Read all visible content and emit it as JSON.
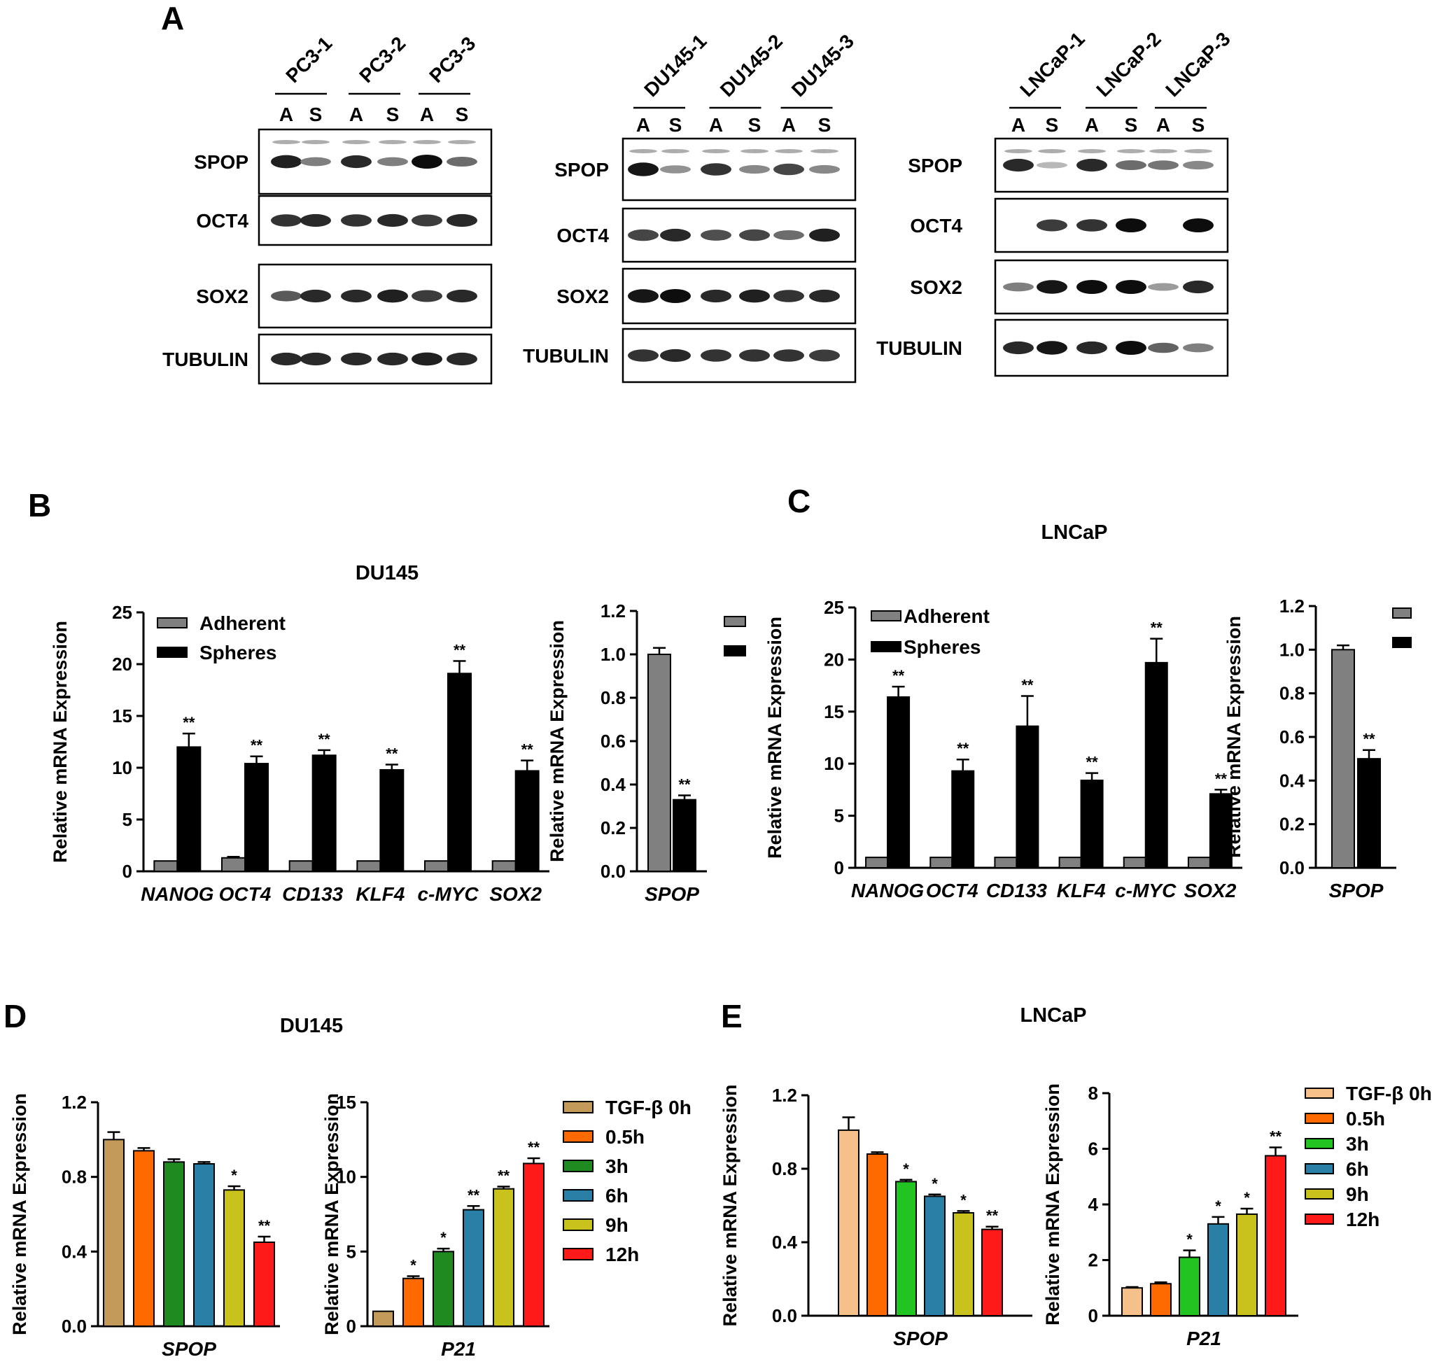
{
  "figure": {
    "panel_labels": [
      "A",
      "B",
      "C",
      "D",
      "E"
    ]
  },
  "western": {
    "lane_labels": [
      "A",
      "S"
    ],
    "proteins": [
      "SPOP",
      "OCT4",
      "SOX2",
      "TUBULIN"
    ],
    "blots": [
      {
        "samples": [
          "PC3-1",
          "PC3-2",
          "PC3-3"
        ],
        "intensity": [
          [
            0.9,
            0.4,
            0.85,
            0.4,
            1.0,
            0.5
          ],
          [
            0.8,
            0.85,
            0.8,
            0.85,
            0.75,
            0.85
          ],
          [
            0.6,
            0.85,
            0.85,
            0.9,
            0.75,
            0.85
          ],
          [
            0.85,
            0.85,
            0.85,
            0.85,
            0.9,
            0.85
          ]
        ]
      },
      {
        "samples": [
          "DU145-1",
          "DU145-2",
          "DU145-3"
        ],
        "intensity": [
          [
            0.95,
            0.3,
            0.8,
            0.35,
            0.7,
            0.35
          ],
          [
            0.7,
            0.85,
            0.65,
            0.7,
            0.5,
            0.9
          ],
          [
            0.95,
            1.0,
            0.85,
            0.9,
            0.8,
            0.85
          ],
          [
            0.8,
            0.85,
            0.8,
            0.8,
            0.8,
            0.75
          ]
        ]
      },
      {
        "samples": [
          "LNCaP-1",
          "LNCaP-2",
          "LNCaP-3"
        ],
        "intensity": [
          [
            0.85,
            0.1,
            0.85,
            0.5,
            0.45,
            0.35
          ],
          [
            0.0,
            0.75,
            0.8,
            1.0,
            0.0,
            1.0
          ],
          [
            0.4,
            0.95,
            1.0,
            1.0,
            0.25,
            0.85
          ],
          [
            0.85,
            0.95,
            0.85,
            1.0,
            0.55,
            0.4
          ]
        ]
      }
    ]
  },
  "chart_data": [
    {
      "panel": "B",
      "type": "bar",
      "title": "DU145",
      "ylabel": "Relative mRNA Expression",
      "ylim": [
        0,
        25
      ],
      "categories": [
        "NANOG",
        "OCT4",
        "CD133",
        "KLF4",
        "c-MYC",
        "SOX2"
      ],
      "series": [
        {
          "name": "Adherent",
          "color": "#808080",
          "values": [
            1.0,
            1.3,
            1.0,
            1.0,
            1.0,
            1.0
          ],
          "errors": [
            0,
            0.1,
            0,
            0,
            0,
            0
          ]
        },
        {
          "name": "Spheres",
          "color": "#000000",
          "values": [
            12.0,
            10.4,
            11.2,
            9.8,
            19.1,
            9.7
          ],
          "errors": [
            1.3,
            0.7,
            0.5,
            0.5,
            1.2,
            1.0
          ]
        }
      ],
      "significance": [
        [
          "",
          "**"
        ],
        [
          "",
          "**"
        ],
        [
          "",
          "**"
        ],
        [
          "",
          "**"
        ],
        [
          "",
          "**"
        ],
        [
          "",
          "**"
        ]
      ]
    },
    {
      "panel": "B-right",
      "type": "bar",
      "ylabel": "Relative mRNA Expression",
      "ylim": [
        0,
        1.2
      ],
      "categories": [
        "SPOP"
      ],
      "series": [
        {
          "color": "#808080",
          "values": [
            1.0
          ],
          "errors": [
            0.03
          ]
        },
        {
          "color": "#000000",
          "values": [
            0.33
          ],
          "errors": [
            0.02
          ]
        }
      ],
      "significance": [
        [
          "",
          "**"
        ]
      ]
    },
    {
      "panel": "C",
      "type": "bar",
      "title": "LNCaP",
      "ylabel": "Relative mRNA  Expression",
      "ylim": [
        0,
        25
      ],
      "categories": [
        "NANOG",
        "OCT4",
        "CD133",
        "KLF4",
        "c-MYC",
        "SOX2"
      ],
      "series": [
        {
          "name": "Adherent",
          "color": "#808080",
          "values": [
            1.0,
            1.0,
            1.0,
            1.0,
            1.0,
            1.0
          ],
          "errors": [
            0,
            0,
            0,
            0,
            0,
            0
          ]
        },
        {
          "name": "Spheres",
          "color": "#000000",
          "values": [
            16.4,
            9.3,
            13.6,
            8.4,
            19.7,
            7.1
          ],
          "errors": [
            1.0,
            1.1,
            2.9,
            0.7,
            2.3,
            0.4
          ]
        }
      ],
      "significance": [
        [
          "",
          "**"
        ],
        [
          "",
          "**"
        ],
        [
          "",
          "**"
        ],
        [
          "",
          "**"
        ],
        [
          "",
          "**"
        ],
        [
          "",
          "**"
        ]
      ]
    },
    {
      "panel": "C-right",
      "type": "bar",
      "ylabel": "Relative mRNA  Expression",
      "ylim": [
        0,
        1.2
      ],
      "categories": [
        "SPOP"
      ],
      "series": [
        {
          "color": "#808080",
          "values": [
            1.0
          ],
          "errors": [
            0.02
          ]
        },
        {
          "color": "#000000",
          "values": [
            0.5
          ],
          "errors": [
            0.04
          ]
        }
      ],
      "significance": [
        [
          "",
          "**"
        ]
      ]
    },
    {
      "panel": "D-left",
      "type": "bar",
      "title": "DU145",
      "ylabel": "Relative mRNA Expression",
      "ylim": [
        0,
        1.2
      ],
      "categories": [
        "SPOP"
      ],
      "series": [
        {
          "name": "TGF-β 0h",
          "color": "#c49a5a",
          "values": [
            1.0
          ],
          "errors": [
            0.04
          ]
        },
        {
          "name": "0.5h",
          "color": "#ff6a00",
          "values": [
            0.94
          ],
          "errors": [
            0.015
          ]
        },
        {
          "name": "3h",
          "color": "#1f8a1f",
          "values": [
            0.88
          ],
          "errors": [
            0.015
          ]
        },
        {
          "name": "6h",
          "color": "#2a7fa6",
          "values": [
            0.87
          ],
          "errors": [
            0.01
          ]
        },
        {
          "name": "9h",
          "color": "#c9c21c",
          "values": [
            0.73
          ],
          "errors": [
            0.02
          ]
        },
        {
          "name": "12h",
          "color": "#ff1a1a",
          "values": [
            0.45
          ],
          "errors": [
            0.03
          ]
        }
      ],
      "significance": [
        [
          "",
          "",
          "",
          "",
          "*",
          "**"
        ]
      ]
    },
    {
      "panel": "D-right",
      "type": "bar",
      "ylabel": "Relative mRNA Expression",
      "ylim": [
        0,
        15
      ],
      "categories": [
        "P21"
      ],
      "series": [
        {
          "name": "TGF-β 0h",
          "color": "#c49a5a",
          "values": [
            1.0
          ],
          "errors": [
            0
          ]
        },
        {
          "name": "0.5h",
          "color": "#ff6a00",
          "values": [
            3.2
          ],
          "errors": [
            0.15
          ]
        },
        {
          "name": "3h",
          "color": "#1f8a1f",
          "values": [
            5.0
          ],
          "errors": [
            0.2
          ]
        },
        {
          "name": "6h",
          "color": "#2a7fa6",
          "values": [
            7.8
          ],
          "errors": [
            0.25
          ]
        },
        {
          "name": "9h",
          "color": "#c9c21c",
          "values": [
            9.2
          ],
          "errors": [
            0.15
          ]
        },
        {
          "name": "12h",
          "color": "#ff1a1a",
          "values": [
            10.9
          ],
          "errors": [
            0.35
          ]
        }
      ],
      "significance": [
        [
          "",
          "*",
          "*",
          "**",
          "**",
          "**"
        ]
      ]
    },
    {
      "panel": "E-left",
      "type": "bar",
      "title": "LNCaP",
      "ylabel": "Relative mRNA Expression",
      "ylim": [
        0,
        1.2
      ],
      "categories": [
        "SPOP"
      ],
      "series": [
        {
          "name": "TGF-β 0h",
          "color": "#f5c08a",
          "values": [
            1.01
          ],
          "errors": [
            0.07
          ]
        },
        {
          "name": "0.5h",
          "color": "#ff6a00",
          "values": [
            0.88
          ],
          "errors": [
            0.01
          ]
        },
        {
          "name": "3h",
          "color": "#22c422",
          "values": [
            0.73
          ],
          "errors": [
            0.01
          ]
        },
        {
          "name": "6h",
          "color": "#2a7fa6",
          "values": [
            0.65
          ],
          "errors": [
            0.01
          ]
        },
        {
          "name": "9h",
          "color": "#c9c21c",
          "values": [
            0.56
          ],
          "errors": [
            0.01
          ]
        },
        {
          "name": "12h",
          "color": "#ff1a1a",
          "values": [
            0.47
          ],
          "errors": [
            0.015
          ]
        }
      ],
      "significance": [
        [
          "",
          "",
          "*",
          "*",
          "*",
          "**"
        ]
      ]
    },
    {
      "panel": "E-right",
      "type": "bar",
      "ylabel": "Relative mRNA Expression",
      "ylim": [
        0,
        8
      ],
      "categories": [
        "P21"
      ],
      "series": [
        {
          "name": "TGF-β 0h",
          "color": "#f5c08a",
          "values": [
            1.0
          ],
          "errors": [
            0.03
          ]
        },
        {
          "name": "0.5h",
          "color": "#ff6a00",
          "values": [
            1.15
          ],
          "errors": [
            0.05
          ]
        },
        {
          "name": "3h",
          "color": "#22c422",
          "values": [
            2.1
          ],
          "errors": [
            0.25
          ]
        },
        {
          "name": "6h",
          "color": "#2a7fa6",
          "values": [
            3.3
          ],
          "errors": [
            0.25
          ]
        },
        {
          "name": "9h",
          "color": "#c9c21c",
          "values": [
            3.65
          ],
          "errors": [
            0.2
          ]
        },
        {
          "name": "12h",
          "color": "#ff1a1a",
          "values": [
            5.75
          ],
          "errors": [
            0.3
          ]
        }
      ],
      "significance": [
        [
          "",
          "",
          "*",
          "*",
          "*",
          "**"
        ]
      ]
    }
  ]
}
